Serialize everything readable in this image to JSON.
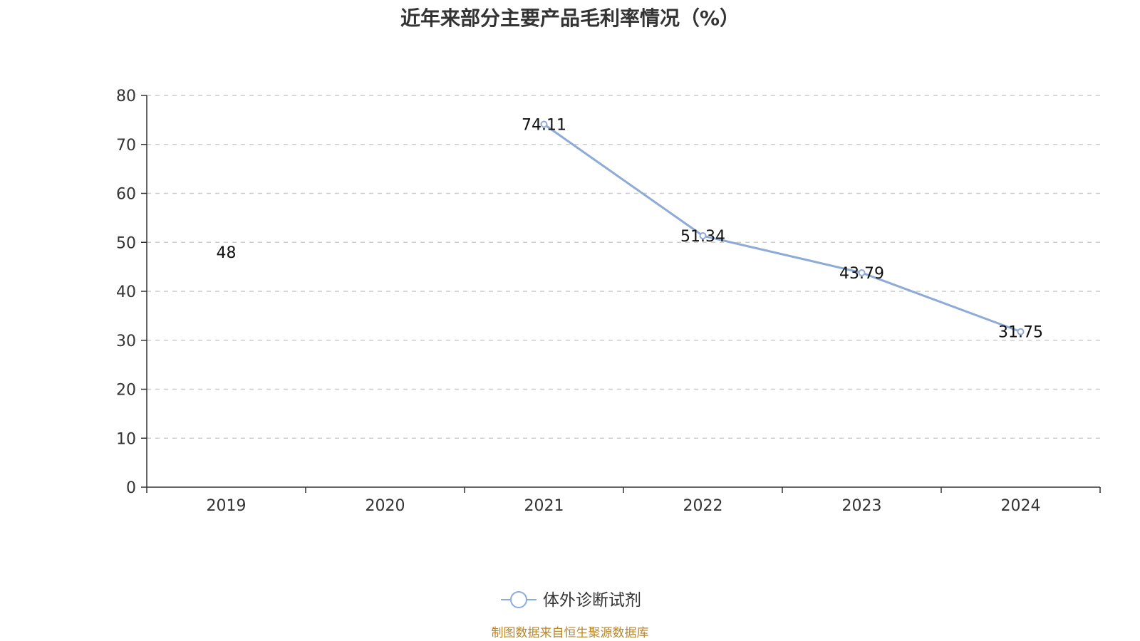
{
  "chart_data": {
    "type": "line",
    "title": "近年来部分主要产品毛利率情况（%）",
    "categories": [
      "2019",
      "2020",
      "2021",
      "2022",
      "2023",
      "2024"
    ],
    "series": [
      {
        "name": "体外诊断试剂",
        "values": [
          48,
          null,
          74.11,
          51.34,
          43.79,
          31.75
        ],
        "labels": [
          "48",
          "",
          "74.11",
          "51.34",
          "43.79",
          "31.75"
        ],
        "color": "#8eaad6"
      }
    ],
    "y_ticks": [
      "0",
      "10",
      "20",
      "30",
      "40",
      "50",
      "60",
      "70",
      "80"
    ],
    "ylim": [
      0,
      80
    ],
    "grid": true,
    "legend_position": "bottom-center"
  },
  "source_note": "制图数据来自恒生聚源数据库"
}
